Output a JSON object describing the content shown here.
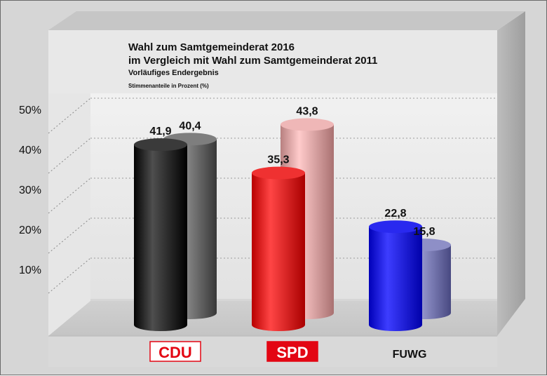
{
  "chart_data": {
    "type": "bar",
    "title": "Wahl zum Samtgemeinderat 2016",
    "subtitle": "im Vergleich mit Wahl zum Samtgemeinderat 2011",
    "note1": "Vorläufiges Endergebnis",
    "note2": "Stimmenanteile in Prozent (%)",
    "categories": [
      "CDU",
      "SPD",
      "FUWG"
    ],
    "series": [
      {
        "values": [
          41.9,
          35.3,
          22.8
        ],
        "labels": [
          "41,9",
          "35,3",
          "22,8"
        ],
        "colors": [
          "#2b2b2b",
          "#e02222",
          "#1a1ae0"
        ]
      },
      {
        "values": [
          40.4,
          43.8,
          15.8
        ],
        "labels": [
          "40,4",
          "43,8",
          "15,8"
        ],
        "colors": [
          "#6f6f6f",
          "#e0a8a8",
          "#7f80b8"
        ]
      }
    ],
    "yticks": [
      "10%",
      "20%",
      "30%",
      "40%",
      "50%"
    ],
    "ytick_values": [
      10,
      20,
      30,
      40,
      50
    ],
    "ylim": [
      0,
      50
    ],
    "grid": true,
    "category_styles": [
      {
        "text_color": "#e30613",
        "bg": "#ffffff",
        "border": "#e30613"
      },
      {
        "text_color": "#ffffff",
        "bg": "#e30613",
        "border": "#e30613"
      },
      {
        "text_color": "#111111",
        "bg": "none",
        "border": "none"
      }
    ]
  }
}
